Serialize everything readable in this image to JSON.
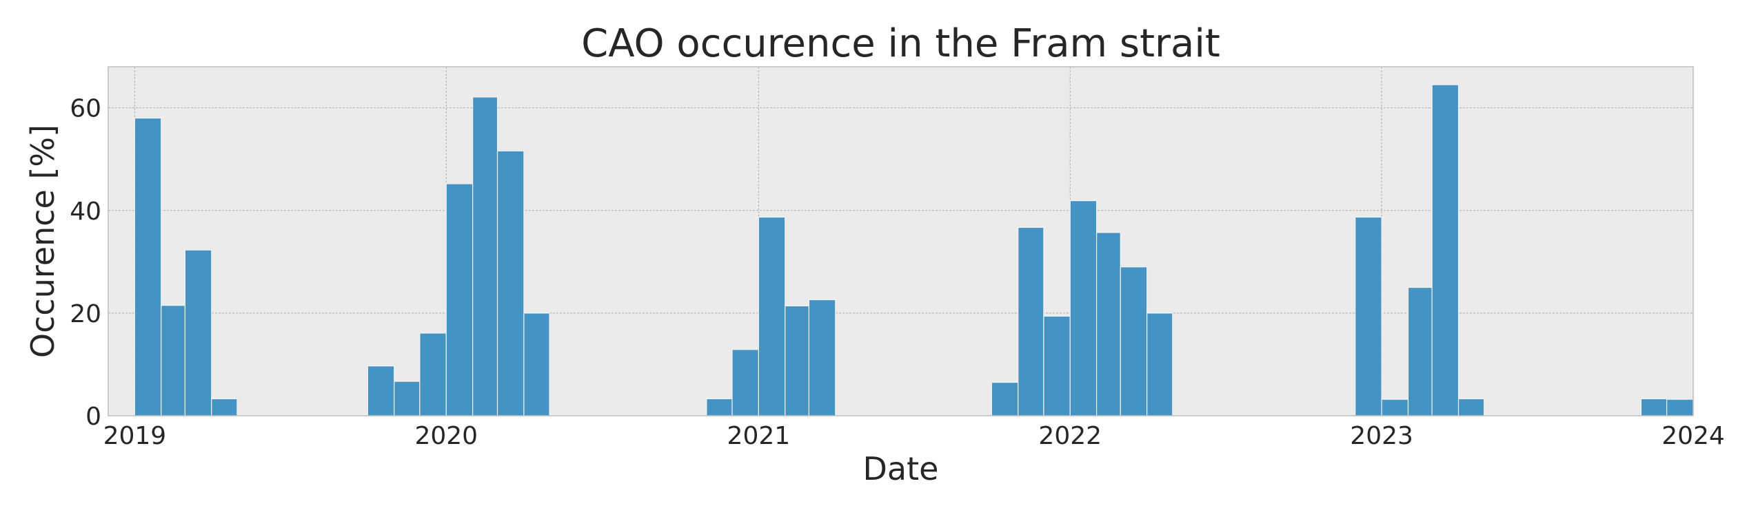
{
  "chart_data": {
    "type": "bar",
    "title": "CAO occurence in the Fram strait",
    "xlabel": "Date",
    "ylabel": "Occurence [%]",
    "x_ticks": [
      "2019",
      "2020",
      "2021",
      "2022",
      "2023",
      "2024"
    ],
    "y_ticks": [
      0,
      20,
      40,
      60
    ],
    "xlim": [
      "2018-12-01",
      "2024-01-01"
    ],
    "ylim": [
      0,
      68
    ],
    "grid": true,
    "bins": [
      {
        "start": "2019-01-01",
        "end": "2019-02-01",
        "value": 58
      },
      {
        "start": "2019-02-01",
        "end": "2019-03-01",
        "value": 21.5
      },
      {
        "start": "2019-03-01",
        "end": "2019-04-01",
        "value": 32.3
      },
      {
        "start": "2019-04-01",
        "end": "2019-05-01",
        "value": 3.3
      },
      {
        "start": "2019-10-01",
        "end": "2019-11-01",
        "value": 9.7
      },
      {
        "start": "2019-11-01",
        "end": "2019-12-01",
        "value": 6.7
      },
      {
        "start": "2019-12-01",
        "end": "2020-01-01",
        "value": 16.1
      },
      {
        "start": "2020-01-01",
        "end": "2020-02-01",
        "value": 45.2
      },
      {
        "start": "2020-02-01",
        "end": "2020-03-01",
        "value": 62.1
      },
      {
        "start": "2020-03-01",
        "end": "2020-04-01",
        "value": 51.6
      },
      {
        "start": "2020-04-01",
        "end": "2020-05-01",
        "value": 20
      },
      {
        "start": "2020-11-01",
        "end": "2020-12-01",
        "value": 3.3
      },
      {
        "start": "2020-12-01",
        "end": "2021-01-01",
        "value": 12.9
      },
      {
        "start": "2021-01-01",
        "end": "2021-02-01",
        "value": 38.7
      },
      {
        "start": "2021-02-01",
        "end": "2021-03-01",
        "value": 21.4
      },
      {
        "start": "2021-03-01",
        "end": "2021-04-01",
        "value": 22.6
      },
      {
        "start": "2021-10-01",
        "end": "2021-11-01",
        "value": 6.5
      },
      {
        "start": "2021-11-01",
        "end": "2021-12-01",
        "value": 36.7
      },
      {
        "start": "2021-12-01",
        "end": "2022-01-01",
        "value": 19.4
      },
      {
        "start": "2022-01-01",
        "end": "2022-02-01",
        "value": 41.9
      },
      {
        "start": "2022-02-01",
        "end": "2022-03-01",
        "value": 35.7
      },
      {
        "start": "2022-03-01",
        "end": "2022-04-01",
        "value": 29
      },
      {
        "start": "2022-04-01",
        "end": "2022-05-01",
        "value": 20
      },
      {
        "start": "2022-12-01",
        "end": "2023-01-01",
        "value": 38.7
      },
      {
        "start": "2023-01-01",
        "end": "2023-02-01",
        "value": 3.2
      },
      {
        "start": "2023-02-01",
        "end": "2023-03-01",
        "value": 25
      },
      {
        "start": "2023-03-01",
        "end": "2023-04-01",
        "value": 64.5
      },
      {
        "start": "2023-04-01",
        "end": "2023-05-01",
        "value": 3.3
      },
      {
        "start": "2023-11-01",
        "end": "2023-12-01",
        "value": 3.3
      },
      {
        "start": "2023-12-01",
        "end": "2024-01-01",
        "value": 3.2
      }
    ],
    "colors": {
      "bar": "#4593c2",
      "bar_edge": "#f2f2f2",
      "plot_background": "#ebebeb",
      "grid": "#b0b0b0",
      "frame": "#bdbdbd",
      "text": "#262626"
    }
  }
}
